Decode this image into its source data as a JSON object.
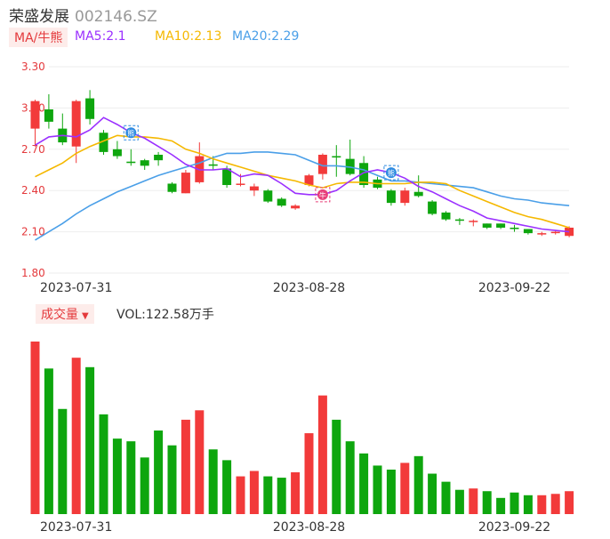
{
  "header": {
    "name": "荣盛发展",
    "code": "002146.SZ"
  },
  "legend": {
    "ma_tag": "MA/牛熊",
    "ma5": {
      "label": "MA5:2.1",
      "color": "#9b30ff"
    },
    "ma10": {
      "label": "MA10:2.13",
      "color": "#f5b800"
    },
    "ma20": {
      "label": "MA20:2.29",
      "color": "#4a9fe8"
    }
  },
  "volume": {
    "tag": "成交量",
    "label": "VOL:122.58万手"
  },
  "colors": {
    "up": "#f23a3a",
    "down": "#0ea60e",
    "grid": "#eeeeee",
    "axis": "#e4393c"
  },
  "markers": [
    {
      "index": 7,
      "text": "熊",
      "kind": "bear",
      "color": "#2f8be0"
    },
    {
      "index": 21,
      "text": "牛",
      "kind": "bull",
      "color": "#e8407a"
    },
    {
      "index": 26,
      "text": "熊",
      "kind": "bear",
      "color": "#2f8be0"
    }
  ],
  "chart_data": {
    "type": "candlestick",
    "ylim": [
      1.8,
      3.3
    ],
    "yticks": [
      "3.30",
      "3.00",
      "2.70",
      "2.40",
      "2.10",
      "1.80"
    ],
    "xticks": [
      {
        "index": 3,
        "label": "2023-07-31"
      },
      {
        "index": 20,
        "label": "2023-08-28"
      },
      {
        "index": 35,
        "label": "2023-09-22"
      }
    ],
    "candles": [
      {
        "o": 2.85,
        "c": 3.05,
        "h": 3.06,
        "l": 2.72
      },
      {
        "o": 2.99,
        "c": 2.9,
        "h": 3.1,
        "l": 2.85
      },
      {
        "o": 2.85,
        "c": 2.75,
        "h": 2.96,
        "l": 2.73
      },
      {
        "o": 2.72,
        "c": 3.05,
        "h": 3.06,
        "l": 2.6
      },
      {
        "o": 3.07,
        "c": 2.92,
        "h": 3.13,
        "l": 2.88
      },
      {
        "o": 2.82,
        "c": 2.68,
        "h": 2.84,
        "l": 2.66
      },
      {
        "o": 2.7,
        "c": 2.65,
        "h": 2.76,
        "l": 2.63
      },
      {
        "o": 2.61,
        "c": 2.6,
        "h": 2.7,
        "l": 2.58
      },
      {
        "o": 2.62,
        "c": 2.58,
        "h": 2.63,
        "l": 2.55
      },
      {
        "o": 2.66,
        "c": 2.62,
        "h": 2.68,
        "l": 2.58
      },
      {
        "o": 2.45,
        "c": 2.39,
        "h": 2.46,
        "l": 2.38
      },
      {
        "o": 2.38,
        "c": 2.53,
        "h": 2.55,
        "l": 2.38
      },
      {
        "o": 2.46,
        "c": 2.65,
        "h": 2.75,
        "l": 2.45
      },
      {
        "o": 2.59,
        "c": 2.58,
        "h": 2.65,
        "l": 2.55
      },
      {
        "o": 2.56,
        "c": 2.44,
        "h": 2.58,
        "l": 2.42
      },
      {
        "o": 2.45,
        "c": 2.45,
        "h": 2.52,
        "l": 2.43
      },
      {
        "o": 2.4,
        "c": 2.43,
        "h": 2.45,
        "l": 2.36
      },
      {
        "o": 2.4,
        "c": 2.32,
        "h": 2.41,
        "l": 2.31
      },
      {
        "o": 2.34,
        "c": 2.29,
        "h": 2.35,
        "l": 2.28
      },
      {
        "o": 2.27,
        "c": 2.29,
        "h": 2.3,
        "l": 2.26
      },
      {
        "o": 2.44,
        "c": 2.51,
        "h": 2.52,
        "l": 2.43
      },
      {
        "o": 2.52,
        "c": 2.66,
        "h": 2.67,
        "l": 2.48
      },
      {
        "o": 2.65,
        "c": 2.64,
        "h": 2.73,
        "l": 2.5
      },
      {
        "o": 2.63,
        "c": 2.52,
        "h": 2.77,
        "l": 2.51
      },
      {
        "o": 2.6,
        "c": 2.44,
        "h": 2.65,
        "l": 2.42
      },
      {
        "o": 2.48,
        "c": 2.42,
        "h": 2.5,
        "l": 2.41
      },
      {
        "o": 2.4,
        "c": 2.31,
        "h": 2.41,
        "l": 2.29
      },
      {
        "o": 2.31,
        "c": 2.4,
        "h": 2.42,
        "l": 2.29
      },
      {
        "o": 2.39,
        "c": 2.36,
        "h": 2.51,
        "l": 2.35
      },
      {
        "o": 2.32,
        "c": 2.23,
        "h": 2.33,
        "l": 2.22
      },
      {
        "o": 2.24,
        "c": 2.19,
        "h": 2.25,
        "l": 2.18
      },
      {
        "o": 2.19,
        "c": 2.18,
        "h": 2.2,
        "l": 2.15
      },
      {
        "o": 2.18,
        "c": 2.18,
        "h": 2.19,
        "l": 2.14
      },
      {
        "o": 2.16,
        "c": 2.13,
        "h": 2.16,
        "l": 2.12
      },
      {
        "o": 2.16,
        "c": 2.13,
        "h": 2.16,
        "l": 2.12
      },
      {
        "o": 2.13,
        "c": 2.12,
        "h": 2.15,
        "l": 2.1
      },
      {
        "o": 2.12,
        "c": 2.09,
        "h": 2.12,
        "l": 2.08
      },
      {
        "o": 2.09,
        "c": 2.09,
        "h": 2.1,
        "l": 2.07
      },
      {
        "o": 2.09,
        "c": 2.1,
        "h": 2.11,
        "l": 2.08
      },
      {
        "o": 2.07,
        "c": 2.13,
        "h": 2.14,
        "l": 2.06
      }
    ],
    "ma5": [
      2.73,
      2.79,
      2.8,
      2.79,
      2.84,
      2.93,
      2.88,
      2.82,
      2.78,
      2.72,
      2.66,
      2.59,
      2.55,
      2.55,
      2.56,
      2.5,
      2.52,
      2.51,
      2.45,
      2.38,
      2.37,
      2.37,
      2.4,
      2.47,
      2.53,
      2.55,
      2.53,
      2.49,
      2.43,
      2.39,
      2.34,
      2.29,
      2.25,
      2.2,
      2.18,
      2.16,
      2.14,
      2.12,
      2.11,
      2.1
    ],
    "ma10": [
      2.5,
      2.55,
      2.6,
      2.67,
      2.72,
      2.76,
      2.8,
      2.79,
      2.79,
      2.78,
      2.76,
      2.7,
      2.67,
      2.63,
      2.6,
      2.57,
      2.54,
      2.51,
      2.49,
      2.47,
      2.44,
      2.42,
      2.45,
      2.46,
      2.46,
      2.45,
      2.45,
      2.45,
      2.46,
      2.46,
      2.45,
      2.4,
      2.36,
      2.32,
      2.28,
      2.24,
      2.21,
      2.19,
      2.16,
      2.13
    ],
    "ma20": [
      2.04,
      2.1,
      2.16,
      2.23,
      2.29,
      2.34,
      2.39,
      2.43,
      2.47,
      2.51,
      2.54,
      2.57,
      2.6,
      2.64,
      2.67,
      2.67,
      2.68,
      2.68,
      2.67,
      2.66,
      2.62,
      2.58,
      2.58,
      2.57,
      2.55,
      2.51,
      2.47,
      2.47,
      2.46,
      2.45,
      2.44,
      2.43,
      2.42,
      2.39,
      2.36,
      2.34,
      2.33,
      2.31,
      2.3,
      2.29
    ],
    "volume": [
      128,
      108,
      78,
      116,
      109,
      74,
      56,
      54,
      42,
      62,
      51,
      70,
      77,
      48,
      40,
      28,
      32,
      28,
      27,
      31,
      60,
      88,
      70,
      54,
      45,
      36,
      33,
      38,
      43,
      30,
      24,
      18,
      19,
      17,
      12,
      16,
      14,
      14,
      15,
      17
    ]
  }
}
